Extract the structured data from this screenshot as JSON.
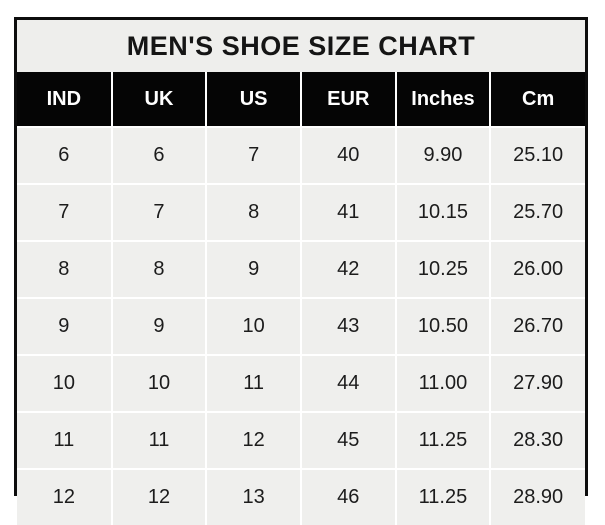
{
  "title": "MEN'S SHOE SIZE CHART",
  "colors": {
    "frame_border": "#0d0d0d",
    "title_bg": "#eeeeec",
    "header_bg": "#050505",
    "header_text": "#ffffff",
    "cell_bg": "#efefed",
    "cell_text": "#1c1c1c",
    "gridline": "#ffffff"
  },
  "chart_data": {
    "type": "table",
    "title": "MEN'S SHOE SIZE CHART",
    "columns": [
      "IND",
      "UK",
      "US",
      "EUR",
      "Inches",
      "Cm"
    ],
    "rows": [
      [
        "6",
        "6",
        "7",
        "40",
        "9.90",
        "25.10"
      ],
      [
        "7",
        "7",
        "8",
        "41",
        "10.15",
        "25.70"
      ],
      [
        "8",
        "8",
        "9",
        "42",
        "10.25",
        "26.00"
      ],
      [
        "9",
        "9",
        "10",
        "43",
        "10.50",
        "26.70"
      ],
      [
        "10",
        "10",
        "11",
        "44",
        "11.00",
        "27.90"
      ],
      [
        "11",
        "11",
        "12",
        "45",
        "11.25",
        "28.30"
      ],
      [
        "12",
        "12",
        "13",
        "46",
        "11.25",
        "28.90"
      ]
    ]
  }
}
